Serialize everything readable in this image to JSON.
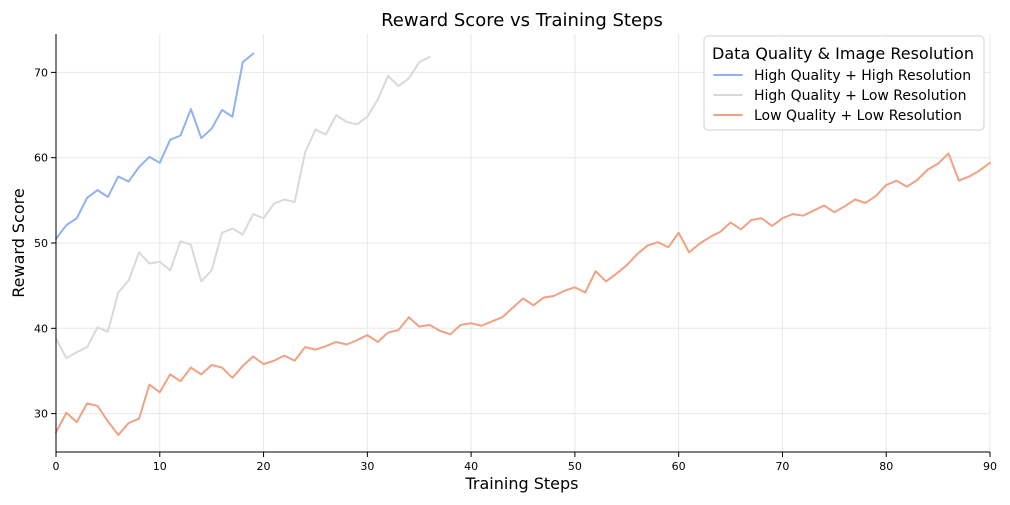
{
  "chart_data": {
    "type": "line",
    "title": "Reward Score vs Training Steps",
    "xlabel": "Training Steps",
    "ylabel": "Reward Score",
    "xlim": [
      0,
      90
    ],
    "ylim": [
      25.5,
      74.5
    ],
    "xticks": [
      0,
      10,
      20,
      30,
      40,
      50,
      60,
      70,
      80,
      90
    ],
    "yticks": [
      30,
      40,
      50,
      60,
      70
    ],
    "grid": true,
    "legend": {
      "title": "Data Quality & Image Resolution",
      "placement": "top-right"
    },
    "series": [
      {
        "name": "High Quality + High Resolution",
        "color": "#8fb2f2",
        "x": [
          0,
          1,
          2,
          3,
          4,
          5,
          6,
          7,
          8,
          9,
          10,
          11,
          12,
          13,
          14,
          15,
          16,
          17,
          18,
          19
        ],
        "values": [
          50.5,
          52.1,
          52.9,
          55.3,
          56.2,
          55.4,
          57.8,
          57.2,
          58.9,
          60.1,
          59.4,
          62.1,
          62.6,
          65.7,
          62.3,
          63.4,
          65.6,
          64.8,
          71.2,
          72.2
        ]
      },
      {
        "name": "High Quality + Low Resolution",
        "color": "#d9d9d9",
        "x": [
          0,
          1,
          2,
          3,
          4,
          5,
          6,
          7,
          8,
          9,
          10,
          11,
          12,
          13,
          14,
          15,
          16,
          17,
          18,
          19,
          20,
          21,
          22,
          23,
          24,
          25,
          26,
          27,
          28,
          29,
          30,
          31,
          32,
          33,
          34,
          35,
          36
        ],
        "values": [
          38.8,
          36.5,
          37.2,
          37.8,
          40.1,
          39.6,
          44.2,
          45.6,
          48.9,
          47.6,
          47.8,
          46.8,
          50.2,
          49.8,
          45.5,
          46.8,
          51.2,
          51.7,
          51.0,
          53.4,
          52.9,
          54.6,
          55.1,
          54.8,
          60.6,
          63.3,
          62.7,
          65.0,
          64.2,
          63.9,
          64.8,
          66.8,
          69.6,
          68.4,
          69.3,
          71.2,
          71.8
        ]
      },
      {
        "name": "Low Quality + Low Resolution",
        "color": "#f0a283",
        "x": [
          0,
          1,
          2,
          3,
          4,
          5,
          6,
          7,
          8,
          9,
          10,
          11,
          12,
          13,
          14,
          15,
          16,
          17,
          18,
          19,
          20,
          21,
          22,
          23,
          24,
          25,
          26,
          27,
          28,
          29,
          30,
          31,
          32,
          33,
          34,
          35,
          36,
          37,
          38,
          39,
          40,
          41,
          42,
          43,
          44,
          45,
          46,
          47,
          48,
          49,
          50,
          51,
          52,
          53,
          54,
          55,
          56,
          57,
          58,
          59,
          60,
          61,
          62,
          63,
          64,
          65,
          66,
          67,
          68,
          69,
          70,
          71,
          72,
          73,
          74,
          75,
          76,
          77,
          78,
          79,
          80,
          81,
          82,
          83,
          84,
          85,
          86,
          87,
          88,
          89,
          90
        ],
        "values": [
          27.8,
          30.1,
          29.0,
          31.2,
          30.9,
          29.1,
          27.5,
          28.9,
          29.4,
          33.4,
          32.5,
          34.6,
          33.8,
          35.4,
          34.6,
          35.7,
          35.4,
          34.2,
          35.6,
          36.7,
          35.8,
          36.2,
          36.8,
          36.2,
          37.8,
          37.5,
          37.9,
          38.4,
          38.1,
          38.6,
          39.2,
          38.4,
          39.5,
          39.8,
          41.3,
          40.2,
          40.4,
          39.7,
          39.3,
          40.4,
          40.6,
          40.3,
          40.8,
          41.3,
          42.4,
          43.5,
          42.7,
          43.6,
          43.8,
          44.4,
          44.8,
          44.2,
          46.7,
          45.5,
          46.4,
          47.4,
          48.7,
          49.7,
          50.1,
          49.5,
          51.2,
          48.9,
          49.9,
          50.7,
          51.3,
          52.4,
          51.6,
          52.7,
          52.9,
          52.0,
          52.9,
          53.4,
          53.2,
          53.8,
          54.4,
          53.6,
          54.3,
          55.1,
          54.7,
          55.5,
          56.8,
          57.3,
          56.6,
          57.4,
          58.6,
          59.3,
          60.5,
          57.3,
          57.8,
          58.5,
          59.4
        ]
      }
    ]
  }
}
